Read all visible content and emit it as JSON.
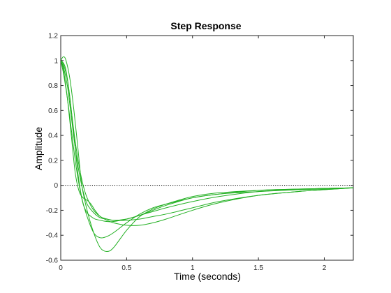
{
  "chart_data": {
    "type": "line",
    "title": "Step Response",
    "xlabel": "Time (seconds)",
    "ylabel": "Amplitude",
    "xlim": [
      0,
      2.22
    ],
    "ylim": [
      -0.6,
      1.2
    ],
    "xticks": [
      0,
      0.5,
      1,
      1.5,
      2
    ],
    "xtick_labels": [
      "0",
      "0.5",
      "1",
      "1.5",
      "2"
    ],
    "yticks": [
      -0.6,
      -0.4,
      -0.2,
      0,
      0.2,
      0.4,
      0.6,
      0.8,
      1,
      1.2
    ],
    "ytick_labels": [
      "-0.6",
      "-0.4",
      "-0.2",
      "0",
      "0.2",
      "0.4",
      "0.6",
      "0.8",
      "1",
      "1.2"
    ],
    "grid": false,
    "line_color": "#22b022",
    "reference_line": {
      "y": 0,
      "style": "dotted",
      "color": "#000000"
    },
    "series": [
      {
        "x": [
          0,
          0.02,
          0.04,
          0.07,
          0.1,
          0.13,
          0.16,
          0.2,
          0.25,
          0.3,
          0.35,
          0.4,
          0.5,
          0.6,
          0.7,
          0.8,
          1.0,
          1.2,
          1.5,
          1.8,
          2.0,
          2.22
        ],
        "y": [
          1.0,
          1.03,
          1.0,
          0.85,
          0.6,
          0.3,
          0.0,
          -0.2,
          -0.38,
          -0.5,
          -0.53,
          -0.5,
          -0.36,
          -0.25,
          -0.19,
          -0.15,
          -0.09,
          -0.06,
          -0.04,
          -0.03,
          -0.025,
          -0.02
        ]
      },
      {
        "x": [
          0,
          0.02,
          0.04,
          0.07,
          0.1,
          0.13,
          0.16,
          0.2,
          0.25,
          0.3,
          0.35,
          0.4,
          0.5,
          0.6,
          0.7,
          0.8,
          1.0,
          1.2,
          1.5,
          1.8,
          2.0,
          2.22
        ],
        "y": [
          1.0,
          0.98,
          0.92,
          0.7,
          0.4,
          0.1,
          -0.1,
          -0.25,
          -0.38,
          -0.42,
          -0.41,
          -0.38,
          -0.3,
          -0.23,
          -0.18,
          -0.15,
          -0.1,
          -0.07,
          -0.05,
          -0.035,
          -0.03,
          -0.02
        ]
      },
      {
        "x": [
          0,
          0.02,
          0.05,
          0.08,
          0.11,
          0.14,
          0.17,
          0.2,
          0.25,
          0.3,
          0.35,
          0.4,
          0.5,
          0.6,
          0.7,
          0.8,
          1.0,
          1.2,
          1.5,
          1.8,
          2.0,
          2.22
        ],
        "y": [
          1.0,
          0.97,
          0.85,
          0.6,
          0.35,
          0.15,
          0.0,
          -0.1,
          -0.2,
          -0.25,
          -0.28,
          -0.3,
          -0.32,
          -0.32,
          -0.3,
          -0.27,
          -0.2,
          -0.14,
          -0.08,
          -0.05,
          -0.035,
          -0.02
        ]
      },
      {
        "x": [
          0,
          0.02,
          0.05,
          0.08,
          0.11,
          0.14,
          0.17,
          0.2,
          0.25,
          0.3,
          0.35,
          0.4,
          0.5,
          0.6,
          0.7,
          0.8,
          1.0,
          1.2,
          1.5,
          1.8,
          2.0,
          2.22
        ],
        "y": [
          1.0,
          0.95,
          0.8,
          0.55,
          0.3,
          0.1,
          -0.05,
          -0.15,
          -0.22,
          -0.26,
          -0.27,
          -0.28,
          -0.28,
          -0.27,
          -0.25,
          -0.23,
          -0.18,
          -0.13,
          -0.08,
          -0.05,
          -0.035,
          -0.02
        ]
      },
      {
        "x": [
          0,
          0.02,
          0.05,
          0.08,
          0.11,
          0.14,
          0.17,
          0.2,
          0.23,
          0.26,
          0.3,
          0.35,
          0.4,
          0.5,
          0.6,
          0.7,
          0.8,
          1.0,
          1.2,
          1.5,
          1.8,
          2.0,
          2.22
        ],
        "y": [
          1.0,
          0.93,
          0.7,
          0.4,
          0.1,
          -0.05,
          -0.1,
          -0.12,
          -0.15,
          -0.2,
          -0.25,
          -0.27,
          -0.28,
          -0.27,
          -0.24,
          -0.2,
          -0.16,
          -0.1,
          -0.07,
          -0.04,
          -0.03,
          -0.025,
          -0.02
        ]
      },
      {
        "x": [
          0,
          0.02,
          0.05,
          0.08,
          0.11,
          0.14,
          0.17,
          0.2,
          0.23,
          0.26,
          0.3,
          0.35,
          0.4,
          0.5,
          0.6,
          0.7,
          0.8,
          1.0,
          1.2,
          1.5,
          1.8,
          2.0,
          2.22
        ],
        "y": [
          1.0,
          0.9,
          0.7,
          0.45,
          0.2,
          0.0,
          -0.15,
          -0.22,
          -0.25,
          -0.27,
          -0.28,
          -0.29,
          -0.29,
          -0.27,
          -0.24,
          -0.21,
          -0.18,
          -0.13,
          -0.09,
          -0.05,
          -0.035,
          -0.025,
          -0.02
        ]
      }
    ]
  }
}
